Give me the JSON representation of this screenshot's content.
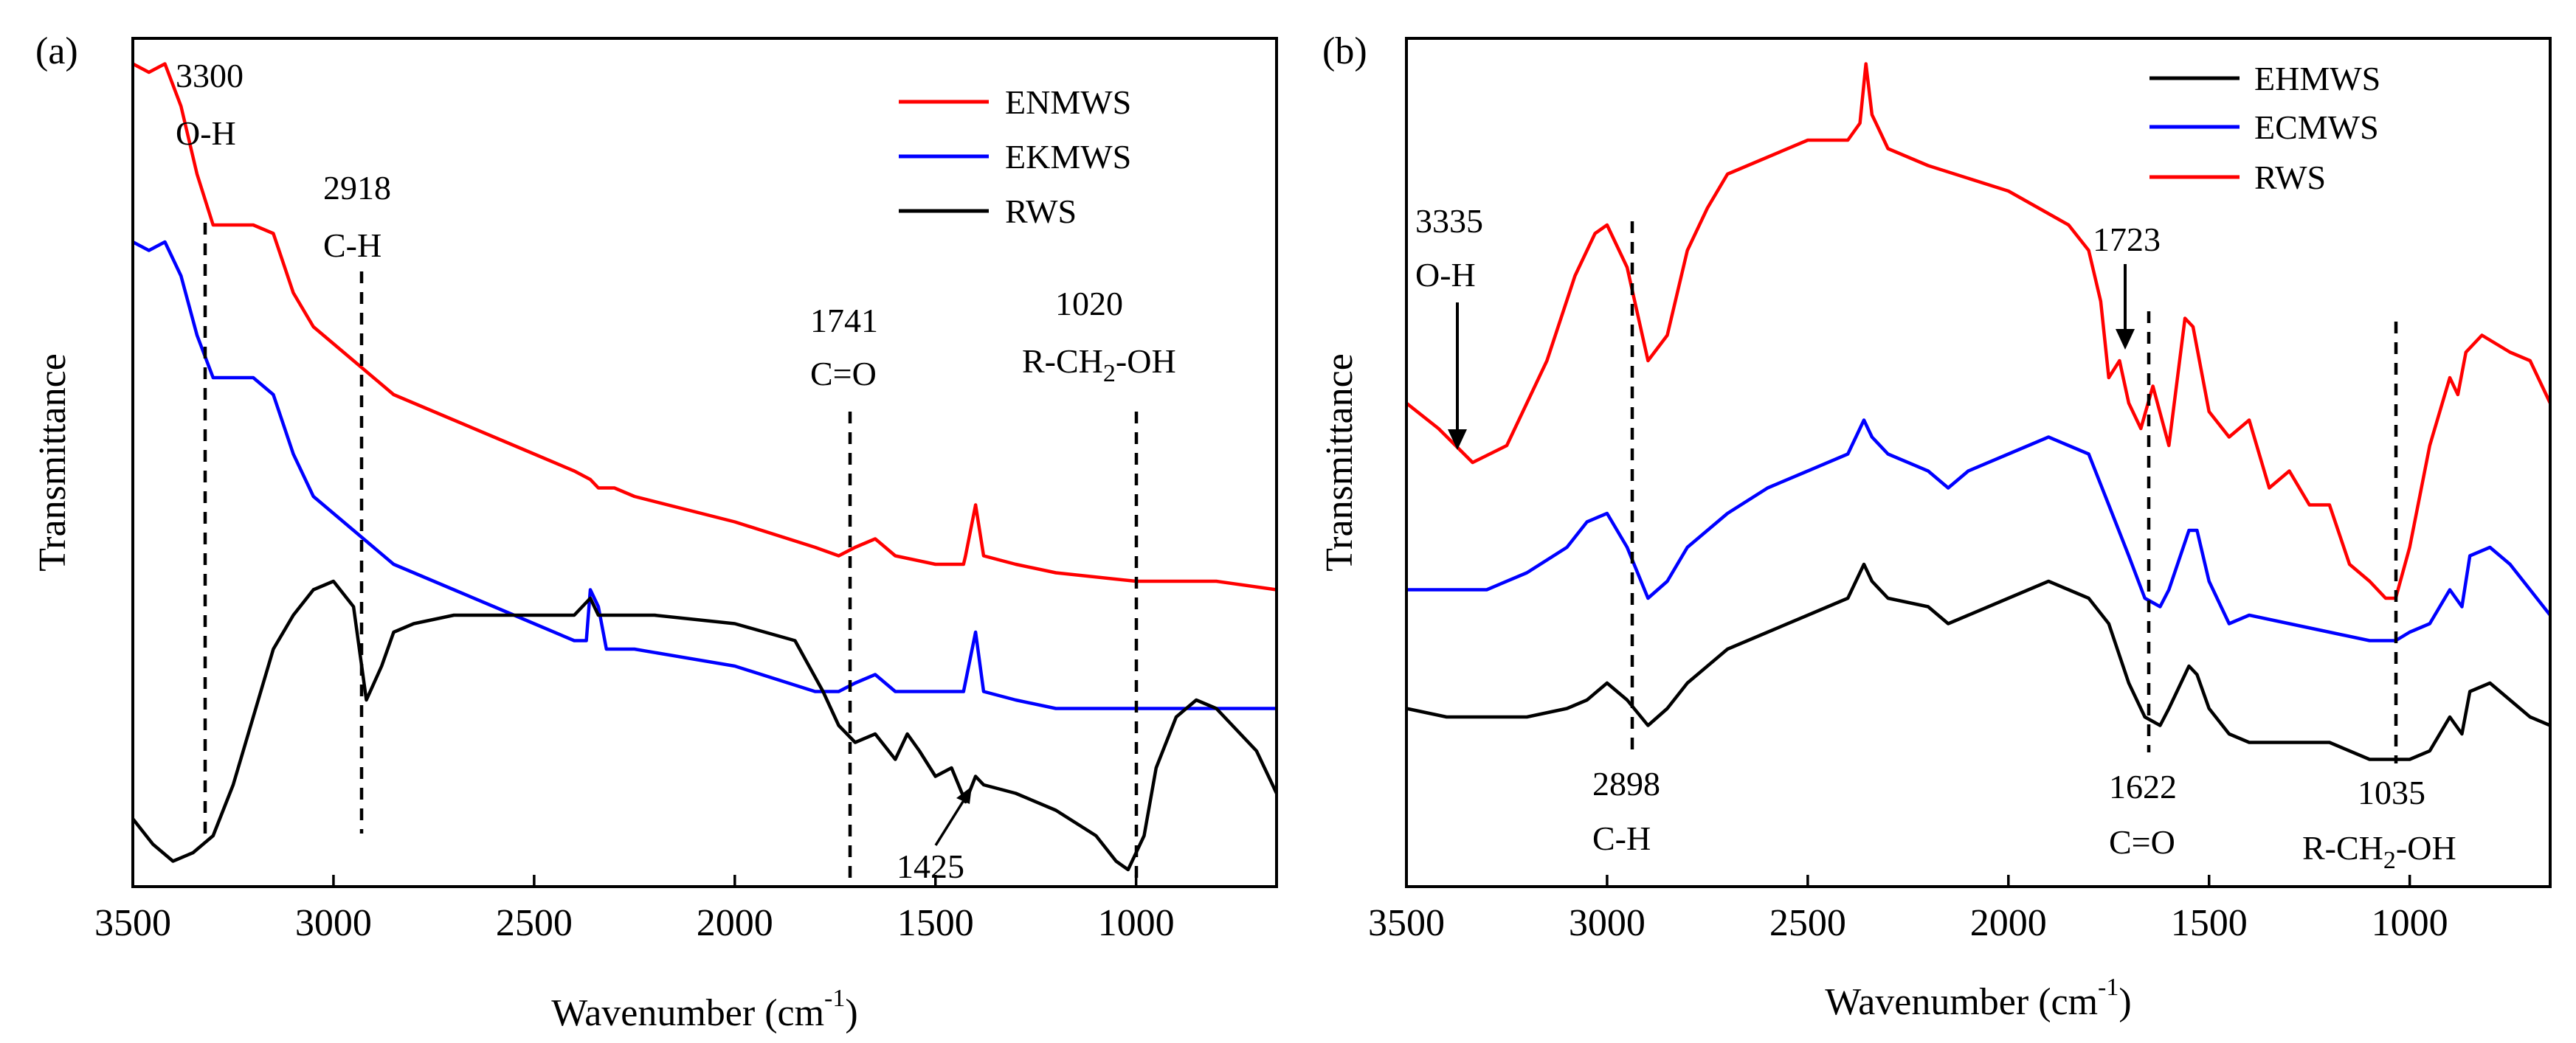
{
  "chart_data": [
    {
      "panel_label": "(a)",
      "type": "line",
      "xlabel": "Wavenumber (cm",
      "xlabel_sup": "-1",
      "xlabel_close": ")",
      "ylabel": "Transmittance",
      "xlim": [
        3500,
        650
      ],
      "ylim": [
        0,
        100
      ],
      "x_ticks": [
        3500,
        3000,
        2500,
        2000,
        1500,
        1000
      ],
      "legend_position": "top-right",
      "series": [
        {
          "name": "ENMWS",
          "color": "#ff0000",
          "x": [
            3500,
            3460,
            3420,
            3380,
            3340,
            3300,
            3250,
            3200,
            3150,
            3100,
            3050,
            3000,
            2950,
            2900,
            2850,
            2800,
            2700,
            2600,
            2500,
            2400,
            2360,
            2340,
            2300,
            2250,
            2000,
            1800,
            1741,
            1700,
            1650,
            1600,
            1500,
            1430,
            1425,
            1400,
            1380,
            1300,
            1200,
            1000,
            900,
            800,
            650
          ],
          "y": [
            97,
            96,
            97,
            92,
            84,
            78,
            78,
            78,
            77,
            70,
            66,
            64,
            62,
            60,
            58,
            57,
            55,
            53,
            51,
            49,
            48,
            47,
            47,
            46,
            43,
            40,
            39,
            40,
            41,
            39,
            38,
            38,
            39,
            45,
            39,
            38,
            37,
            36,
            36,
            36,
            35
          ]
        },
        {
          "name": "EKMWS",
          "color": "#0000ff",
          "x": [
            3500,
            3460,
            3420,
            3380,
            3340,
            3300,
            3250,
            3200,
            3150,
            3100,
            3050,
            3000,
            2950,
            2900,
            2850,
            2800,
            2700,
            2600,
            2500,
            2400,
            2370,
            2360,
            2340,
            2320,
            2300,
            2250,
            2000,
            1800,
            1741,
            1700,
            1650,
            1600,
            1500,
            1430,
            1400,
            1380,
            1300,
            1200,
            1000,
            900,
            800,
            650
          ],
          "y": [
            76,
            75,
            76,
            72,
            65,
            60,
            60,
            60,
            58,
            51,
            46,
            44,
            42,
            40,
            38,
            37,
            35,
            33,
            31,
            29,
            29,
            35,
            33,
            28,
            28,
            28,
            26,
            23,
            23,
            24,
            25,
            23,
            23,
            23,
            30,
            23,
            22,
            21,
            21,
            21,
            21,
            21
          ]
        },
        {
          "name": "RWS",
          "color": "#000000",
          "x": [
            3500,
            3450,
            3400,
            3350,
            3300,
            3250,
            3200,
            3150,
            3100,
            3050,
            3000,
            2950,
            2918,
            2880,
            2850,
            2800,
            2700,
            2600,
            2500,
            2400,
            2360,
            2340,
            2300,
            2200,
            2000,
            1850,
            1780,
            1741,
            1700,
            1650,
            1600,
            1570,
            1540,
            1500,
            1460,
            1425,
            1400,
            1380,
            1300,
            1200,
            1100,
            1050,
            1020,
            980,
            950,
            900,
            850,
            800,
            700,
            650
          ],
          "y": [
            8,
            5,
            3,
            4,
            6,
            12,
            20,
            28,
            32,
            35,
            36,
            33,
            22,
            26,
            30,
            31,
            32,
            32,
            32,
            32,
            34,
            32,
            32,
            32,
            31,
            29,
            23,
            19,
            17,
            18,
            15,
            18,
            16,
            13,
            14,
            10,
            13,
            12,
            11,
            9,
            6,
            3,
            2,
            6,
            14,
            20,
            22,
            21,
            16,
            11
          ]
        }
      ],
      "annotations": [
        {
          "lines": [
            "3300",
            "O-H"
          ],
          "x": 3300
        },
        {
          "lines": [
            "2918",
            "C-H"
          ],
          "x": 2918
        },
        {
          "lines": [
            "1741",
            "C=O"
          ],
          "x": 1741
        },
        {
          "lines": [
            "1020",
            "R-CH",
            "2",
            "-OH"
          ],
          "x": 1020
        },
        {
          "lines": [
            "1425"
          ],
          "x": 1425
        }
      ]
    },
    {
      "panel_label": "(b)",
      "type": "line",
      "xlabel": "Wavenumber (cm",
      "xlabel_sup": "-1",
      "xlabel_close": ")",
      "ylabel": "Transmittance",
      "xlim": [
        3500,
        650
      ],
      "ylim": [
        0,
        100
      ],
      "x_ticks": [
        3500,
        3000,
        2500,
        2000,
        1500,
        1000
      ],
      "legend_position": "top-right",
      "series": [
        {
          "name": "EHMWS",
          "color": "#000000",
          "x": [
            3500,
            3400,
            3300,
            3200,
            3100,
            3050,
            3000,
            2950,
            2898,
            2850,
            2800,
            2700,
            2600,
            2500,
            2400,
            2360,
            2340,
            2300,
            2200,
            2150,
            2100,
            2000,
            1900,
            1850,
            1800,
            1750,
            1700,
            1660,
            1622,
            1600,
            1550,
            1530,
            1500,
            1450,
            1400,
            1300,
            1200,
            1100,
            1035,
            1000,
            950,
            900,
            870,
            850,
            800,
            750,
            700,
            650
          ],
          "y": [
            21,
            20,
            20,
            20,
            21,
            22,
            24,
            22,
            19,
            21,
            24,
            28,
            30,
            32,
            34,
            38,
            36,
            34,
            33,
            31,
            32,
            34,
            36,
            35,
            34,
            31,
            24,
            20,
            19,
            21,
            26,
            25,
            21,
            18,
            17,
            17,
            17,
            15,
            15,
            15,
            16,
            20,
            18,
            23,
            24,
            22,
            20,
            19
          ]
        },
        {
          "name": "ECMWS",
          "color": "#0000ff",
          "x": [
            3500,
            3400,
            3300,
            3200,
            3100,
            3050,
            3000,
            2950,
            2898,
            2850,
            2800,
            2700,
            2600,
            2500,
            2400,
            2360,
            2340,
            2300,
            2200,
            2150,
            2100,
            2000,
            1900,
            1850,
            1800,
            1750,
            1700,
            1660,
            1622,
            1600,
            1550,
            1530,
            1500,
            1450,
            1400,
            1300,
            1200,
            1100,
            1035,
            1000,
            950,
            900,
            870,
            850,
            800,
            750,
            700,
            650
          ],
          "y": [
            35,
            35,
            35,
            37,
            40,
            43,
            44,
            40,
            34,
            36,
            40,
            44,
            47,
            49,
            51,
            55,
            53,
            51,
            49,
            47,
            49,
            51,
            53,
            52,
            51,
            45,
            39,
            34,
            33,
            35,
            42,
            42,
            36,
            31,
            32,
            31,
            30,
            29,
            29,
            30,
            31,
            35,
            33,
            39,
            40,
            38,
            35,
            32
          ]
        },
        {
          "name": "RWS",
          "color": "#ff0000",
          "x": [
            3500,
            3420,
            3335,
            3250,
            3150,
            3080,
            3030,
            3000,
            2950,
            2898,
            2850,
            2800,
            2750,
            2700,
            2600,
            2500,
            2400,
            2370,
            2355,
            2340,
            2320,
            2300,
            2200,
            2000,
            1850,
            1800,
            1770,
            1750,
            1723,
            1700,
            1670,
            1640,
            1600,
            1560,
            1540,
            1500,
            1450,
            1400,
            1350,
            1300,
            1250,
            1200,
            1150,
            1100,
            1060,
            1035,
            1000,
            950,
            900,
            880,
            860,
            820,
            750,
            700,
            650
          ],
          "y": [
            57,
            54,
            50,
            52,
            62,
            72,
            77,
            78,
            73,
            62,
            65,
            75,
            80,
            84,
            86,
            88,
            88,
            90,
            97,
            91,
            89,
            87,
            85,
            82,
            78,
            75,
            69,
            60,
            62,
            57,
            54,
            59,
            52,
            67,
            66,
            56,
            53,
            55,
            47,
            49,
            45,
            45,
            38,
            36,
            34,
            34,
            40,
            52,
            60,
            58,
            63,
            65,
            63,
            62,
            57
          ]
        }
      ],
      "annotations": [
        {
          "lines": [
            "3335",
            "O-H"
          ],
          "x": 3335
        },
        {
          "lines": [
            "2898",
            "C-H"
          ],
          "x": 2898
        },
        {
          "lines": [
            "1723"
          ],
          "x": 1723
        },
        {
          "lines": [
            "1622",
            "C=O"
          ],
          "x": 1622
        },
        {
          "lines": [
            "1035",
            "R-CH",
            "2",
            "-OH"
          ],
          "x": 1035
        }
      ]
    }
  ]
}
